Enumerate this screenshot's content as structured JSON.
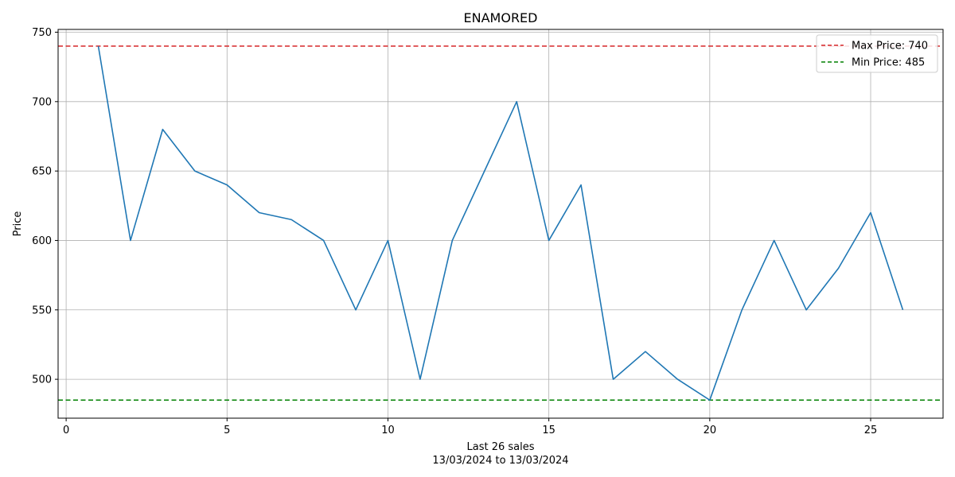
{
  "chart_data": {
    "type": "line",
    "title": "ENAMORED",
    "xlabel": "Last 26 sales",
    "xlabel_sub": "13/03/2024 to 13/03/2024",
    "ylabel": "Price",
    "xlim": [
      -0.25,
      27.25
    ],
    "ylim": [
      472,
      752
    ],
    "xticks": [
      0,
      5,
      10,
      15,
      20,
      25
    ],
    "yticks": [
      500,
      550,
      600,
      650,
      700,
      750
    ],
    "grid": true,
    "legend_position": "top-right",
    "series": [
      {
        "values": [
          740,
          600,
          680,
          650,
          640,
          620,
          615,
          600,
          550,
          600,
          500,
          600,
          650,
          700,
          600,
          640,
          500,
          520,
          500,
          485,
          550,
          600,
          550,
          580,
          620,
          550
        ],
        "x": [
          1,
          2,
          3,
          4,
          5,
          6,
          7,
          8,
          9,
          10,
          11,
          12,
          13,
          14,
          15,
          16,
          17,
          18,
          19,
          20,
          21,
          22,
          23,
          24,
          25,
          26
        ],
        "color": "#1f77b4"
      }
    ],
    "reference_lines": [
      {
        "name": "Max Price: 740",
        "y": 740,
        "color": "#d62728",
        "style": "dashed"
      },
      {
        "name": "Min Price: 485",
        "y": 485,
        "color": "#008000",
        "style": "dashed"
      }
    ]
  }
}
